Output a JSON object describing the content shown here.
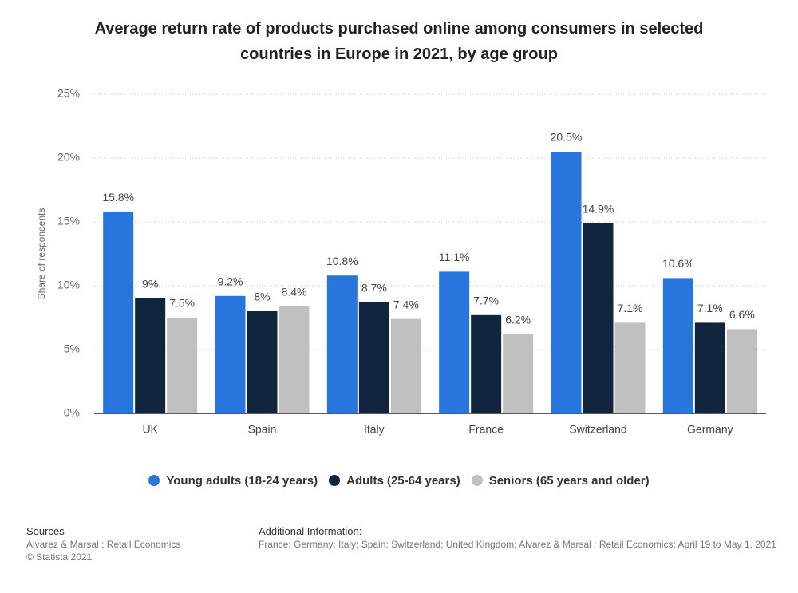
{
  "chart_data": {
    "type": "bar",
    "title": "Average return rate of products purchased online among consumers in selected countries in Europe in 2021, by age group",
    "y_label": "Share of respondents",
    "categories": [
      "UK",
      "Spain",
      "Italy",
      "France",
      "Switzerland",
      "Germany"
    ],
    "series": [
      {
        "name": "Young adults (18-24 years)",
        "color": "#2876dd",
        "values": [
          15.8,
          9.2,
          10.8,
          11.1,
          20.5,
          10.6
        ],
        "value_labels": [
          "15.8%",
          "9.2%",
          "10.8%",
          "11.1%",
          "20.5%",
          "10.6%"
        ]
      },
      {
        "name": "Adults (25-64 years)",
        "color": "#12253f",
        "values": [
          9,
          8,
          8.7,
          7.7,
          14.9,
          7.1
        ],
        "value_labels": [
          "9%",
          "8%",
          "8.7%",
          "7.7%",
          "14.9%",
          "7.1%"
        ]
      },
      {
        "name": "Seniors (65 years and older)",
        "color": "#c0c0c0",
        "values": [
          7.5,
          8.4,
          7.4,
          6.2,
          7.1,
          6.6
        ],
        "value_labels": [
          "7.5%",
          "8.4%",
          "7.4%",
          "6.2%",
          "7.1%",
          "6.6%"
        ]
      }
    ],
    "ylim": [
      0,
      25
    ],
    "yticks": [
      {
        "value": 0,
        "label": "0%"
      },
      {
        "value": 5,
        "label": "5%"
      },
      {
        "value": 10,
        "label": "10%"
      },
      {
        "value": 15,
        "label": "15%"
      },
      {
        "value": 20,
        "label": "20%"
      },
      {
        "value": 25,
        "label": "25%"
      }
    ],
    "grid": true
  },
  "footer": {
    "sources_heading": "Sources",
    "sources": "Alvarez & Marsal ; Retail Economics",
    "copyright": "© Statista 2021",
    "info_heading": "Additional Information:",
    "info": "France; Germany; Italy; Spain; Switzerland; United Kingdom; Alvarez & Marsal ; Retail Economics; April 19 to May 1, 2021"
  }
}
